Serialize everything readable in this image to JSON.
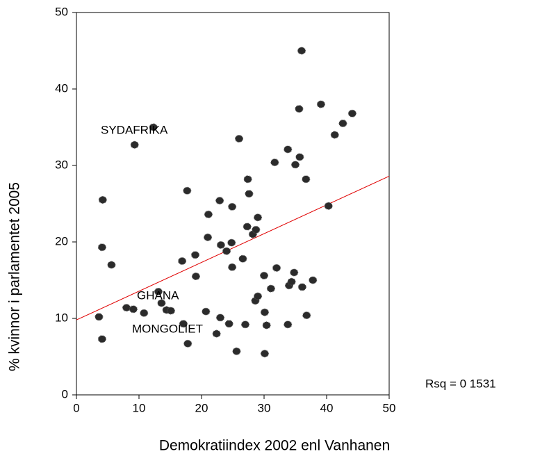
{
  "chart_data": {
    "type": "scatter",
    "x_label": "Demokratiindex 2002 enl Vanhanen",
    "y_label": "% kvinnor i parlamentet 2005",
    "xlim": [
      0,
      50
    ],
    "ylim": [
      0,
      50
    ],
    "xticks": [
      0,
      10,
      20,
      30,
      40,
      50
    ],
    "yticks": [
      0,
      10,
      20,
      30,
      40,
      50
    ],
    "color": "#2b2b2b",
    "fit_line": {
      "color": "#e00000",
      "x": [
        0,
        50
      ],
      "y": [
        9.8,
        28.6
      ]
    },
    "annotations": [
      "SYDAFRIKA",
      "GHANA",
      "MONGOLIET",
      "Rsq = 0 1531"
    ],
    "x": [
      3.6,
      4.2,
      4.1,
      4.1,
      5.6,
      8.0,
      9.1,
      10.8,
      9.3,
      13.1,
      13.6,
      14.4,
      15.1,
      12.3,
      17.7,
      16.9,
      19.0,
      19.1,
      17.1,
      17.8,
      21.1,
      21.0,
      20.7,
      22.4,
      22.9,
      23.1,
      23.0,
      24.0,
      24.4,
      24.9,
      24.8,
      24.9,
      25.6,
      26.0,
      26.6,
      27.0,
      27.3,
      27.4,
      27.6,
      28.2,
      28.7,
      29.0,
      28.6,
      29.0,
      30.0,
      30.1,
      30.4,
      30.1,
      31.1,
      31.7,
      32.0,
      33.8,
      33.8,
      34.0,
      34.4,
      34.8,
      35.0,
      35.6,
      35.7,
      36.0,
      36.1,
      36.7,
      36.8,
      37.8,
      39.1,
      40.3,
      41.3,
      42.6,
      44.1
    ],
    "y": [
      10.2,
      25.5,
      19.3,
      7.3,
      17.0,
      11.4,
      11.2,
      10.7,
      32.7,
      13.5,
      12.0,
      11.1,
      11.0,
      35.0,
      26.7,
      17.5,
      18.3,
      15.5,
      9.3,
      6.7,
      23.6,
      20.6,
      10.9,
      8.0,
      25.4,
      19.6,
      10.1,
      18.8,
      9.3,
      24.6,
      19.9,
      16.7,
      5.7,
      33.5,
      17.8,
      9.2,
      22.0,
      28.2,
      26.3,
      21.0,
      21.6,
      23.2,
      12.3,
      12.9,
      15.6,
      10.8,
      9.1,
      5.4,
      13.9,
      30.4,
      16.6,
      32.1,
      9.2,
      14.3,
      14.8,
      16.0,
      30.1,
      37.4,
      31.1,
      45.0,
      14.1,
      28.2,
      10.4,
      15.0,
      38.0,
      24.7,
      34.0,
      35.5,
      36.8
    ]
  }
}
